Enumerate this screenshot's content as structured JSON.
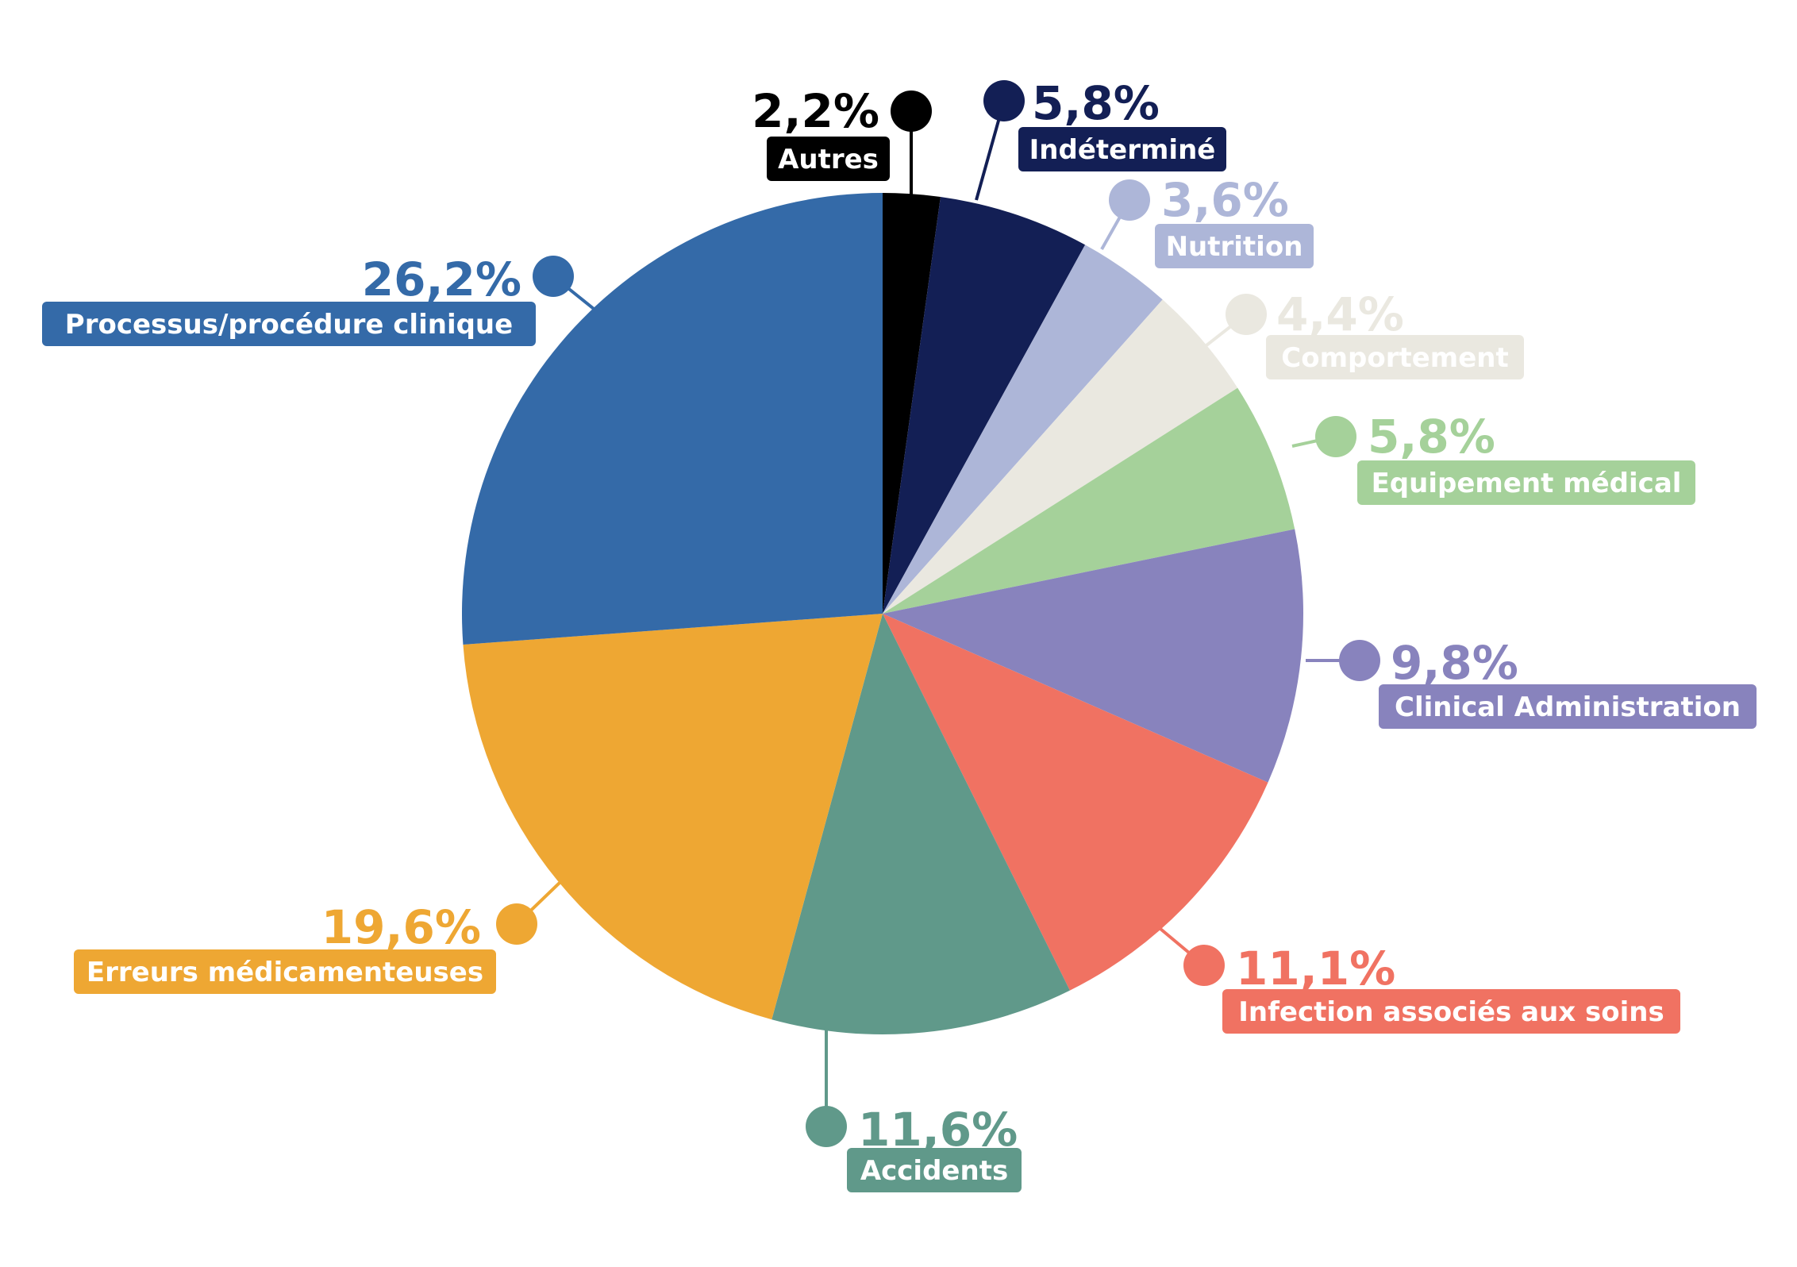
{
  "chart_data": {
    "type": "pie",
    "categories": [
      "Autres",
      "Indéterminé",
      "Nutrition",
      "Comportement",
      "Equipement médical",
      "Clinical Administration",
      "Infection associés aux soins",
      "Accidents",
      "Erreurs médicamenteuses",
      "Processus/procédure clinique"
    ],
    "values": [
      2.2,
      5.8,
      3.6,
      4.4,
      5.8,
      9.8,
      11.1,
      11.6,
      19.6,
      26.2
    ],
    "value_labels": [
      "2,2%",
      "5,8%",
      "3,6%",
      "4,4%",
      "5,8%",
      "9,8%",
      "11,1%",
      "11,6%",
      "19,6%",
      "26,2%"
    ],
    "colors": [
      "#000000",
      "#131f55",
      "#adb6d8",
      "#eae8e0",
      "#a5d19a",
      "#8883bd",
      "#f07262",
      "#60998a",
      "#eea733",
      "#346aa8"
    ],
    "start_angle_deg": 0,
    "direction": "clockwise",
    "legend": "callout labels around pie"
  }
}
